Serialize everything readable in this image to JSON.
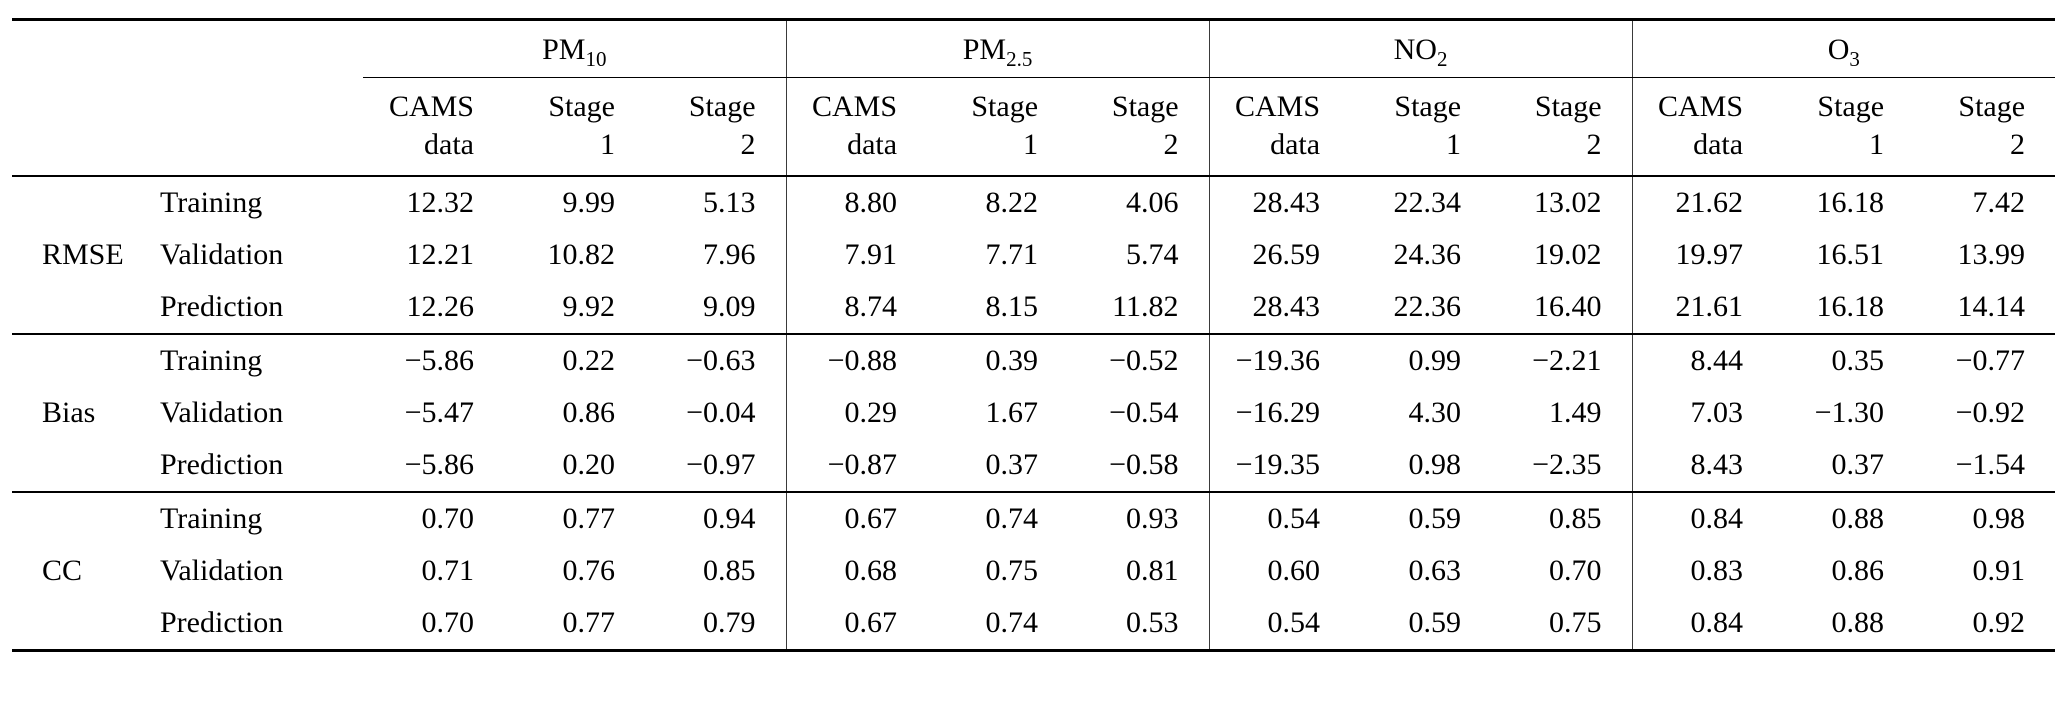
{
  "table": {
    "groups": [
      {
        "base": "PM",
        "sub": "10"
      },
      {
        "base": "PM",
        "sub": "2.5"
      },
      {
        "base": "NO",
        "sub": "2"
      },
      {
        "base": "O",
        "sub": "3"
      }
    ],
    "subheaders": [
      [
        "CAMS",
        "data"
      ],
      [
        "Stage",
        "1"
      ],
      [
        "Stage",
        "2"
      ]
    ],
    "row_labels": [
      "Training",
      "Validation",
      "Prediction"
    ],
    "sections": [
      {
        "metric": "RMSE",
        "rows": [
          {
            "label": "Training",
            "values": [
              "12.32",
              "9.99",
              "5.13",
              "8.80",
              "8.22",
              "4.06",
              "28.43",
              "22.34",
              "13.02",
              "21.62",
              "16.18",
              "7.42"
            ]
          },
          {
            "label": "Validation",
            "values": [
              "12.21",
              "10.82",
              "7.96",
              "7.91",
              "7.71",
              "5.74",
              "26.59",
              "24.36",
              "19.02",
              "19.97",
              "16.51",
              "13.99"
            ]
          },
          {
            "label": "Prediction",
            "values": [
              "12.26",
              "9.92",
              "9.09",
              "8.74",
              "8.15",
              "11.82",
              "28.43",
              "22.36",
              "16.40",
              "21.61",
              "16.18",
              "14.14"
            ]
          }
        ]
      },
      {
        "metric": "Bias",
        "rows": [
          {
            "label": "Training",
            "values": [
              "−5.86",
              "0.22",
              "−0.63",
              "−0.88",
              "0.39",
              "−0.52",
              "−19.36",
              "0.99",
              "−2.21",
              "8.44",
              "0.35",
              "−0.77"
            ]
          },
          {
            "label": "Validation",
            "values": [
              "−5.47",
              "0.86",
              "−0.04",
              "0.29",
              "1.67",
              "−0.54",
              "−16.29",
              "4.30",
              "1.49",
              "7.03",
              "−1.30",
              "−0.92"
            ]
          },
          {
            "label": "Prediction",
            "values": [
              "−5.86",
              "0.20",
              "−0.97",
              "−0.87",
              "0.37",
              "−0.58",
              "−19.35",
              "0.98",
              "−2.35",
              "8.43",
              "0.37",
              "−1.54"
            ]
          }
        ]
      },
      {
        "metric": "CC",
        "rows": [
          {
            "label": "Training",
            "values": [
              "0.70",
              "0.77",
              "0.94",
              "0.67",
              "0.74",
              "0.93",
              "0.54",
              "0.59",
              "0.85",
              "0.84",
              "0.88",
              "0.98"
            ]
          },
          {
            "label": "Validation",
            "values": [
              "0.71",
              "0.76",
              "0.85",
              "0.68",
              "0.75",
              "0.81",
              "0.60",
              "0.63",
              "0.70",
              "0.83",
              "0.86",
              "0.91"
            ]
          },
          {
            "label": "Prediction",
            "values": [
              "0.70",
              "0.77",
              "0.79",
              "0.67",
              "0.74",
              "0.53",
              "0.54",
              "0.59",
              "0.75",
              "0.84",
              "0.88",
              "0.92"
            ]
          }
        ]
      }
    ]
  }
}
